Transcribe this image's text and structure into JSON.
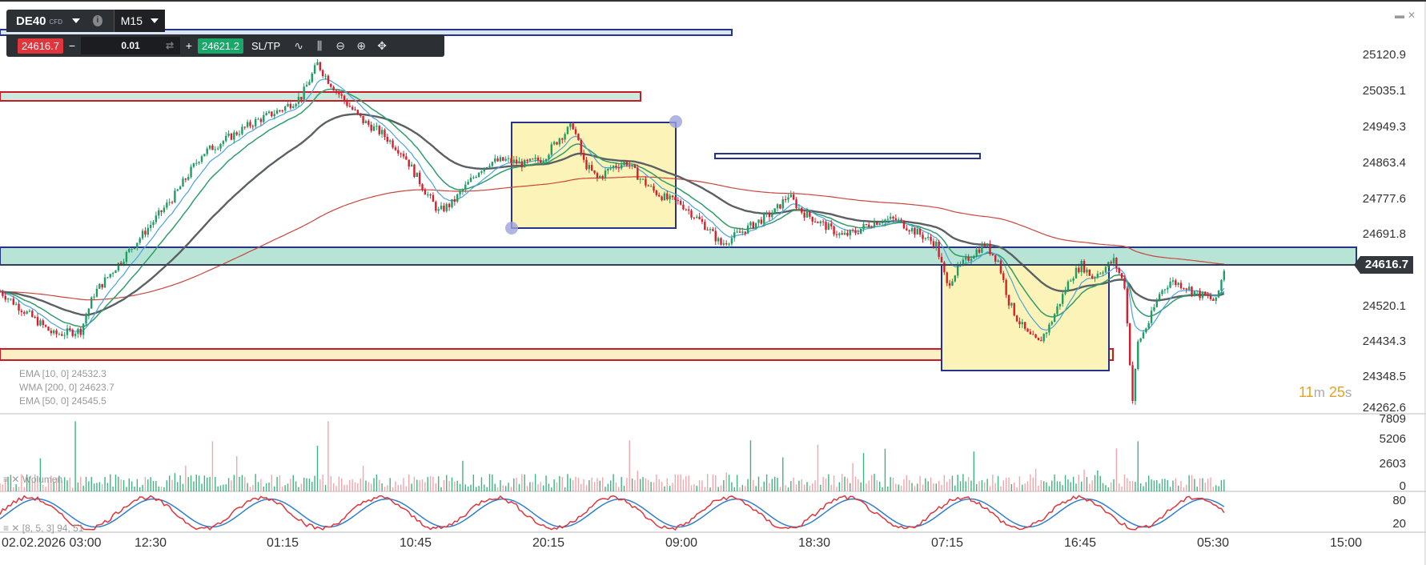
{
  "toolbar": {
    "symbol": "DE40",
    "symbol_tag": "CFD",
    "info_icon": "info-icon",
    "timeframe": "M15",
    "sell_price": "24616.7",
    "minus_label": "−",
    "lot": "0.01",
    "plus_label": "+",
    "buy_price": "24621.2",
    "sltp_label": "SL/TP",
    "icons": [
      "line-chart-icon",
      "candles-icon",
      "zoom-out-icon",
      "zoom-in-icon",
      "move-icon"
    ]
  },
  "window_controls": [
    "minimize-icon",
    "close-icon"
  ],
  "colors": {
    "bull": "#1f9d66",
    "bear": "#d61f2c",
    "box_fill": "#fbf3b8",
    "box_border": "#26338a",
    "zone_teal": "#b7e4d5",
    "zone_red_border": "#c91b27",
    "zone_yellow": "#fbf0c4",
    "ema_fast": "#4aa3e0",
    "ema_mid": "#2f9d6b",
    "ema_slow": "#5b6064",
    "wma": "#c9463d",
    "stoch_k": "#e0353b",
    "stoch_d": "#2f7fcf"
  },
  "chart_data": {
    "type": "candlestick",
    "symbol": "DE40",
    "timeframe": "M15",
    "price_axis": [
      "25120.9",
      "25035.1",
      "24949.3",
      "24863.4",
      "24777.6",
      "24691.8",
      "24520.1",
      "24434.3",
      "24348.5",
      "24262.6"
    ],
    "current_price": "24616.7",
    "ylim": [
      24262.6,
      25120.9
    ],
    "time_axis": [
      "02.02.2026 03:00",
      "12:30",
      "01:15",
      "10:45",
      "20:15",
      "09:00",
      "18:30",
      "07:15",
      "16:45",
      "05:30",
      "15:00"
    ],
    "countdown": {
      "minutes": "11",
      "m_unit": "m",
      "seconds": "25",
      "s_unit": "s"
    },
    "indicators": {
      "legend_partial": [
        "EMA [10, 0] 24532.3",
        "WMA [200, 0] 24623.7",
        "EMA [50, 0] 24545.5"
      ]
    },
    "volume_axis": [
      "7809",
      "5206",
      "2603",
      "0"
    ],
    "volume_label": "Wolumen",
    "stoch_axis": [
      "80",
      "20"
    ],
    "stoch_label": "[8, 5, 3] 94, 51",
    "price_path": [
      [
        0,
        24545
      ],
      [
        20,
        24440
      ],
      [
        30,
        24450
      ],
      [
        35,
        24540
      ],
      [
        45,
        24620
      ],
      [
        55,
        24700
      ],
      [
        65,
        24780
      ],
      [
        75,
        24880
      ],
      [
        85,
        24920
      ],
      [
        95,
        24960
      ],
      [
        105,
        24990
      ],
      [
        112,
        25020
      ],
      [
        118,
        25100
      ],
      [
        122,
        25060
      ],
      [
        128,
        25010
      ],
      [
        135,
        24960
      ],
      [
        142,
        24930
      ],
      [
        150,
        24880
      ],
      [
        158,
        24790
      ],
      [
        163,
        24740
      ],
      [
        168,
        24760
      ],
      [
        173,
        24800
      ],
      [
        178,
        24840
      ],
      [
        182,
        24860
      ],
      [
        188,
        24865
      ],
      [
        195,
        24855
      ],
      [
        202,
        24870
      ],
      [
        208,
        24920
      ],
      [
        213,
        24950
      ],
      [
        217,
        24860
      ],
      [
        222,
        24820
      ],
      [
        228,
        24850
      ],
      [
        233,
        24860
      ],
      [
        238,
        24820
      ],
      [
        243,
        24790
      ],
      [
        248,
        24770
      ],
      [
        253,
        24760
      ],
      [
        258,
        24730
      ],
      [
        263,
        24700
      ],
      [
        268,
        24660
      ],
      [
        273,
        24680
      ],
      [
        278,
        24700
      ],
      [
        283,
        24720
      ],
      [
        288,
        24740
      ],
      [
        293,
        24780
      ],
      [
        298,
        24740
      ],
      [
        303,
        24720
      ],
      [
        308,
        24700
      ],
      [
        313,
        24680
      ],
      [
        318,
        24690
      ],
      [
        323,
        24710
      ],
      [
        328,
        24720
      ],
      [
        333,
        24720
      ],
      [
        338,
        24700
      ],
      [
        343,
        24680
      ],
      [
        348,
        24660
      ],
      [
        352,
        24560
      ],
      [
        356,
        24600
      ],
      [
        362,
        24640
      ],
      [
        366,
        24660
      ],
      [
        371,
        24620
      ],
      [
        375,
        24520
      ],
      [
        378,
        24480
      ],
      [
        382,
        24440
      ],
      [
        386,
        24420
      ],
      [
        390,
        24460
      ],
      [
        394,
        24520
      ],
      [
        398,
        24580
      ],
      [
        402,
        24610
      ],
      [
        406,
        24580
      ],
      [
        410,
        24600
      ],
      [
        414,
        24620
      ],
      [
        418,
        24560
      ],
      [
        421,
        24280
      ],
      [
        423,
        24420
      ],
      [
        427,
        24470
      ],
      [
        431,
        24540
      ],
      [
        435,
        24570
      ],
      [
        440,
        24560
      ],
      [
        445,
        24540
      ],
      [
        449,
        24530
      ],
      [
        452,
        24520
      ],
      [
        455,
        24600
      ]
    ],
    "drawings": [
      {
        "kind": "horizontal_zone",
        "color": "blue-outline",
        "price": 25250
      },
      {
        "kind": "horizontal_zone",
        "color": "red-outline",
        "price": 25050
      },
      {
        "kind": "horizontal_zone",
        "color": "teal-fill",
        "price_top": 24660,
        "price_bottom": 24620
      },
      {
        "kind": "horizontal_zone",
        "color": "red-yellow",
        "price_top": 24460,
        "price_bottom": 24430
      },
      {
        "kind": "rectangle",
        "price_top": 24960,
        "price_bottom": 24710
      },
      {
        "kind": "rectangle",
        "price_top": 24620,
        "price_bottom": 24390
      },
      {
        "kind": "horizontal_zone",
        "color": "blue-outline-thin",
        "price": 24870
      }
    ]
  }
}
